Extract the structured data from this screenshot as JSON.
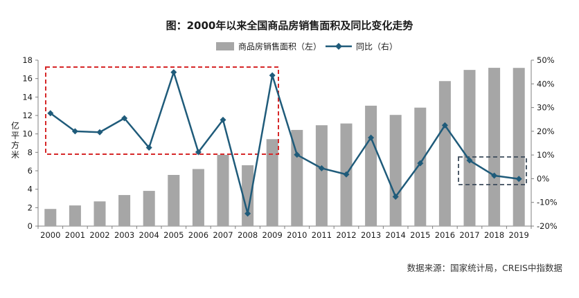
{
  "chart_data": {
    "type": "bar",
    "title": "图：2000年以来全国商品房销售面积及同比变化走势",
    "categories": [
      "2000",
      "2001",
      "2002",
      "2003",
      "2004",
      "2005",
      "2006",
      "2007",
      "2008",
      "2009",
      "2010",
      "2011",
      "2012",
      "2013",
      "2014",
      "2015",
      "2016",
      "2017",
      "2018",
      "2019"
    ],
    "series": [
      {
        "name": "商品房销售面积（左）",
        "kind": "bar",
        "axis": "left",
        "color": "#a6a6a6",
        "values": [
          1.86,
          2.24,
          2.68,
          3.37,
          3.82,
          5.55,
          6.19,
          7.73,
          6.6,
          9.43,
          10.43,
          10.94,
          11.13,
          13.06,
          12.06,
          12.85,
          15.73,
          16.94,
          17.17,
          17.16
        ]
      },
      {
        "name": "同比（右）",
        "kind": "line",
        "axis": "right",
        "color": "#1f5b7a",
        "values": [
          27.6,
          20.0,
          19.6,
          25.5,
          13.1,
          44.9,
          11.2,
          24.8,
          -14.7,
          43.6,
          10.1,
          4.4,
          1.8,
          17.3,
          -7.6,
          6.5,
          22.5,
          7.7,
          1.3,
          -0.1
        ]
      }
    ],
    "ylabel": "亿平方米",
    "ylim": [
      0,
      18
    ],
    "yticks": [
      0,
      2,
      4,
      6,
      8,
      10,
      12,
      14,
      16,
      18
    ],
    "y2lim": [
      -20,
      50
    ],
    "y2ticks": [
      "-20%",
      "-10%",
      "0%",
      "10%",
      "20%",
      "30%",
      "40%",
      "50%"
    ],
    "grid": false,
    "legend_position": "top-center",
    "source": "数据来源：国家统计局，CREIS中指数据"
  }
}
